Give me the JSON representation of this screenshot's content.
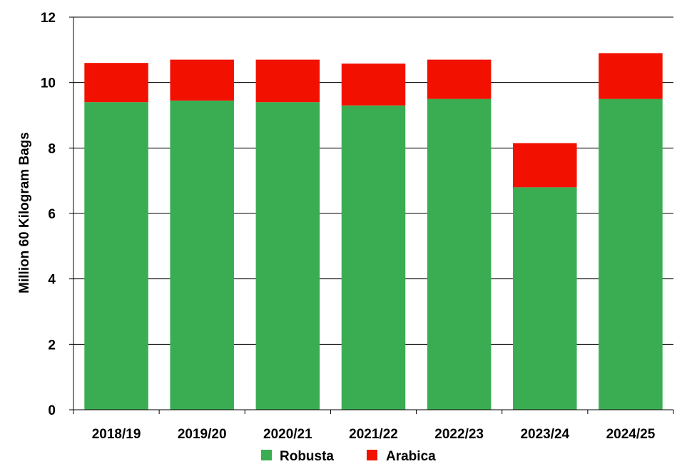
{
  "chart_data": {
    "type": "bar",
    "stacked": true,
    "categories": [
      "2018/19",
      "2019/20",
      "2020/21",
      "2021/22",
      "2022/23",
      "2023/24",
      "2024/25"
    ],
    "series": [
      {
        "name": "Robusta",
        "color": "#3aad52",
        "values": [
          9.4,
          9.45,
          9.4,
          9.3,
          9.5,
          6.8,
          9.5
        ]
      },
      {
        "name": "Arabica",
        "color": "#f21100",
        "values": [
          1.2,
          1.25,
          1.3,
          1.28,
          1.2,
          1.35,
          1.4
        ]
      }
    ],
    "ylabel": "Million 60 Kilogram Bags",
    "ylim": [
      0,
      12
    ],
    "yticks": [
      0,
      2,
      4,
      6,
      8,
      10,
      12
    ],
    "grid": "horizontal",
    "legend": "bottom"
  }
}
